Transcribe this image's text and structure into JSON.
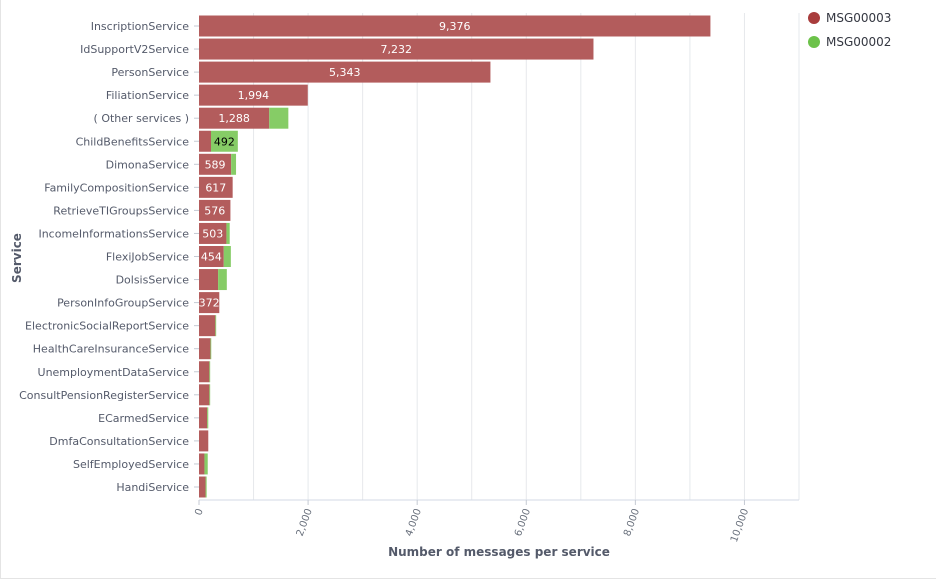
{
  "chart_data": {
    "type": "bar",
    "orientation": "horizontal",
    "stacked": true,
    "xlabel": "Number of messages per service",
    "ylabel": "Service",
    "xlim": [
      0,
      11000
    ],
    "xticks": [
      0,
      2000,
      4000,
      6000,
      8000,
      10000
    ],
    "xtick_labels": [
      "0",
      "2,000",
      "4,000",
      "6,000",
      "8,000",
      "10,000"
    ],
    "grid": true,
    "legend_position": "top-right",
    "categories": [
      "InscriptionService",
      "IdSupportV2Service",
      "PersonService",
      "FiliationService",
      "( Other services )",
      "ChildBenefitsService",
      "DimonaService",
      "FamilyCompositionService",
      "RetrieveTIGroupsService",
      "IncomeInformationsService",
      "FlexiJobService",
      "DolsisService",
      "PersonInfoGroupService",
      "ElectronicSocialReportService",
      "HealthCareInsuranceService",
      "UnemploymentDataService",
      "ConsultPensionRegisterService",
      "ECarmedService",
      "DmfaConsultationService",
      "SelfEmployedService",
      "HandiService"
    ],
    "series": [
      {
        "name": "MSG00003",
        "color": "#a83c3c",
        "bar_color": "#b35c5c",
        "values": [
          9376,
          7232,
          5343,
          1994,
          1288,
          220,
          589,
          617,
          576,
          503,
          454,
          350,
          372,
          300,
          210,
          190,
          190,
          150,
          170,
          100,
          120
        ],
        "labels": [
          "9,376",
          "7,232",
          "5,343",
          "1,994",
          "1,288",
          "",
          "589",
          "617",
          "576",
          "503",
          "454",
          "",
          "372",
          "",
          "",
          "",
          "",
          "",
          "",
          "",
          ""
        ]
      },
      {
        "name": "MSG00002",
        "color": "#6cc24a",
        "bar_color": "#86cc66",
        "values": [
          0,
          0,
          0,
          0,
          350,
          492,
          90,
          0,
          0,
          60,
          130,
          160,
          0,
          10,
          5,
          10,
          5,
          20,
          0,
          60,
          20
        ],
        "labels": [
          "",
          "",
          "",
          "",
          "",
          "492",
          "",
          "",
          "",
          "",
          "",
          "",
          "",
          "",
          "",
          "",
          "",
          "",
          "",
          "",
          ""
        ]
      }
    ]
  }
}
